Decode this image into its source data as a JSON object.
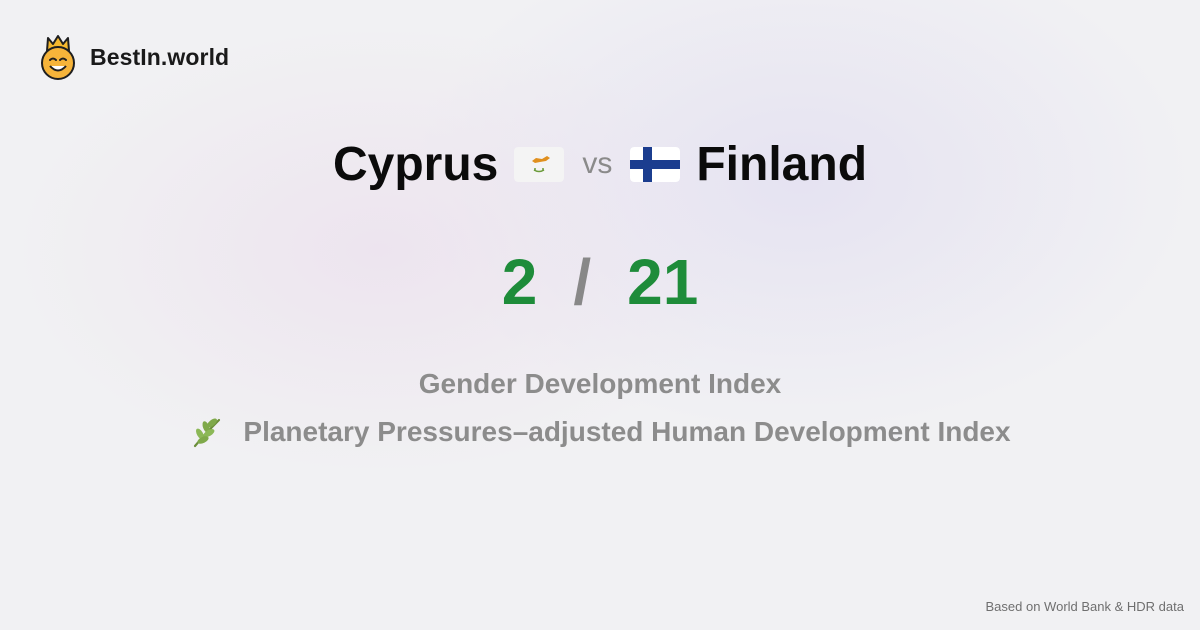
{
  "brand": {
    "name": "BestIn.world",
    "logo_icon": "smiling-crown-emoji-icon"
  },
  "comparison": {
    "left_country": "Cyprus",
    "left_flag_icon": "cyprus-flag-icon",
    "vs_label": "vs",
    "right_country": "Finland",
    "right_flag_icon": "finland-flag-icon",
    "left_score": "2",
    "separator": "/",
    "right_score": "21"
  },
  "metrics": {
    "primary": "Gender Development Index",
    "secondary": "Planetary Pressures–adjusted Human Development Index",
    "secondary_icon": "leaf-sprig-icon"
  },
  "footer": {
    "source": "Based on World Bank & HDR data"
  },
  "colors": {
    "score": "#1e8c3a",
    "muted": "#8c8c8c",
    "text": "#0b0b0b"
  }
}
